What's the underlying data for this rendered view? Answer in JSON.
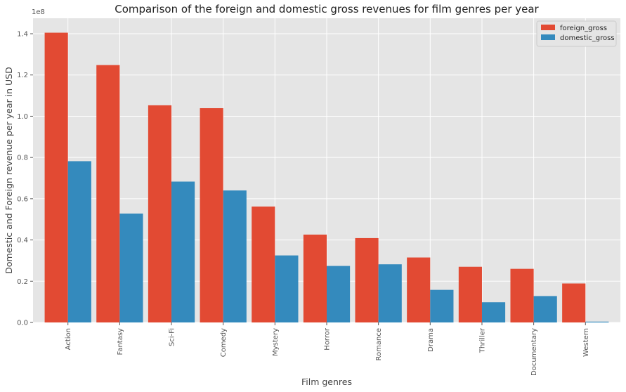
{
  "chart_data": {
    "type": "bar",
    "title": "Comparison of the  foreign and domestic gross revenues for film genres per year",
    "xlabel": "Film genres",
    "ylabel": "Domestic and Foreign revenue per year in USD",
    "y_scale_label": "1e8",
    "categories": [
      "Action",
      "Fantasy",
      "Sci-Fi",
      "Comedy",
      "Mystery",
      "Horror",
      "Romance",
      "Drama",
      "Thriller",
      "Documentary",
      "Western"
    ],
    "series": [
      {
        "name": "foreign_gross",
        "color": "#E24A33",
        "values": [
          140500000,
          124800000,
          105300000,
          103900000,
          56200000,
          42600000,
          40900000,
          31500000,
          27000000,
          26000000,
          18900000
        ]
      },
      {
        "name": "domestic_gross",
        "color": "#348ABD",
        "values": [
          78200000,
          52800000,
          68300000,
          64000000,
          32500000,
          27400000,
          28200000,
          15800000,
          9800000,
          12800000,
          400000
        ]
      }
    ],
    "y_ticks": [
      0,
      20000000,
      40000000,
      60000000,
      80000000,
      100000000,
      120000000,
      140000000
    ],
    "y_tick_labels": [
      "0.0",
      "0.2",
      "0.4",
      "0.6",
      "0.8",
      "1.0",
      "1.2",
      "1.4"
    ],
    "ylim": [
      0,
      147500000
    ],
    "grid": true,
    "legend_position": "top-right",
    "x_tick_rotation": "vertical"
  }
}
